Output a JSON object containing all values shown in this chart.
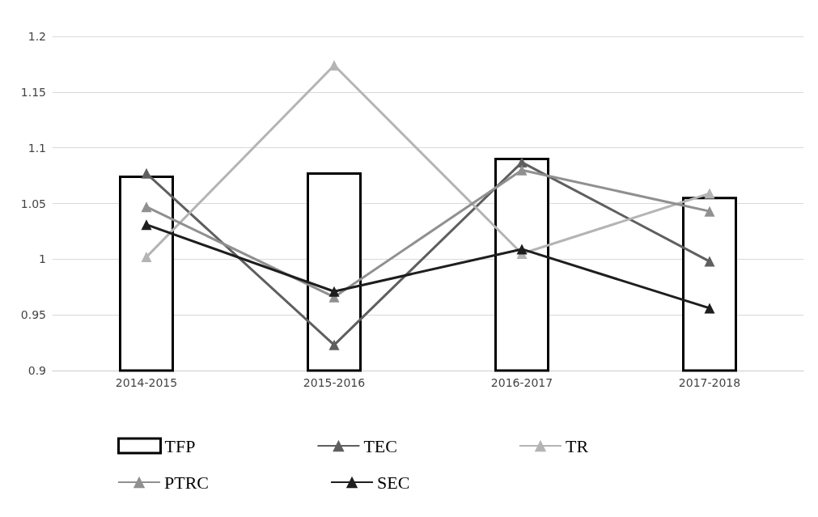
{
  "chart_data": {
    "type": "line",
    "categories": [
      "2014-2015",
      "2015-2016",
      "2016-2017",
      "2017-2018"
    ],
    "series": [
      {
        "name": "TFP",
        "type": "bar",
        "color": "#000000",
        "values": [
          1.075,
          1.078,
          1.091,
          1.056
        ]
      },
      {
        "name": "TEC",
        "color": "#5f5f5f",
        "values": [
          1.077,
          0.923,
          1.087,
          0.998
        ]
      },
      {
        "name": "TR",
        "color": "#b4b4b4",
        "values": [
          1.002,
          1.174,
          1.005,
          1.059
        ]
      },
      {
        "name": "PTRC",
        "color": "#909090",
        "values": [
          1.047,
          0.966,
          1.08,
          1.043
        ]
      },
      {
        "name": "SEC",
        "color": "#1e1e1e",
        "values": [
          1.031,
          0.971,
          1.009,
          0.956
        ]
      }
    ],
    "ylim": [
      0.9,
      1.2
    ],
    "yticks": [
      0.9,
      0.95,
      1,
      1.05,
      1.1,
      1.15,
      1.2
    ],
    "grid": "y",
    "legend": "bottom",
    "marker": "triangle",
    "line_style": "solid"
  }
}
